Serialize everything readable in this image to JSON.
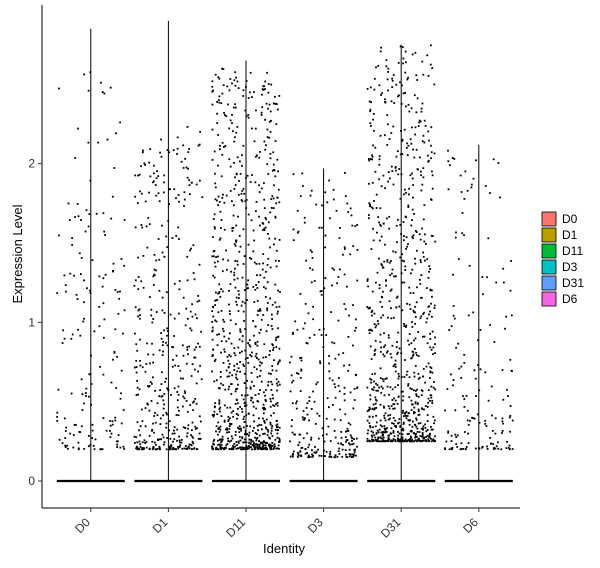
{
  "chart_data": {
    "type": "violin",
    "xlabel": "Identity",
    "ylabel": "Expression Level",
    "categories": [
      "D0",
      "D1",
      "D11",
      "D3",
      "D31",
      "D6"
    ],
    "ylim": [
      -0.17,
      3.0
    ],
    "yticks": [
      0,
      1,
      2
    ],
    "legend": {
      "placement": "right",
      "items": [
        {
          "label": "D0",
          "color": "#F8766D"
        },
        {
          "label": "D1",
          "color": "#B79F00"
        },
        {
          "label": "D11",
          "color": "#00BA38"
        },
        {
          "label": "D3",
          "color": "#00BFC4"
        },
        {
          "label": "D31",
          "color": "#619CFF"
        },
        {
          "label": "D6",
          "color": "#F564E3"
        }
      ]
    },
    "series": [
      {
        "name": "D0",
        "max": 2.85,
        "nonzero_points": 170,
        "nonzero_range": [
          0.2,
          2.6
        ]
      },
      {
        "name": "D1",
        "max": 2.9,
        "nonzero_points": 420,
        "nonzero_range": [
          0.2,
          2.25
        ]
      },
      {
        "name": "D11",
        "max": 2.65,
        "nonzero_points": 900,
        "nonzero_range": [
          0.2,
          2.6
        ]
      },
      {
        "name": "D3",
        "max": 1.97,
        "nonzero_points": 300,
        "nonzero_range": [
          0.15,
          1.95
        ]
      },
      {
        "name": "D31",
        "max": 2.75,
        "nonzero_points": 850,
        "nonzero_range": [
          0.25,
          2.75
        ]
      },
      {
        "name": "D6",
        "max": 2.12,
        "nonzero_points": 160,
        "nonzero_range": [
          0.2,
          2.1
        ]
      }
    ]
  }
}
